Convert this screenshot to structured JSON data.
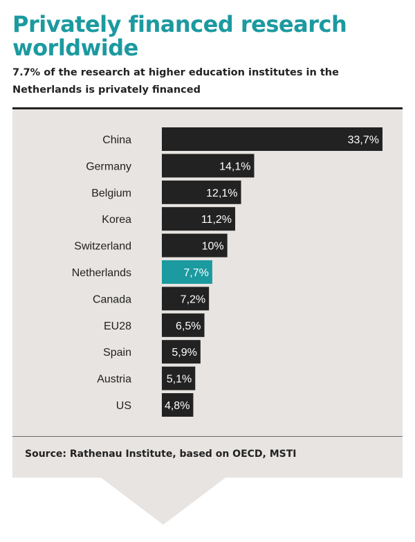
{
  "title": "Privately financed research worldwide",
  "subtitle": "7.7% of the research at higher education institutes in the Netherlands is privately financed",
  "source": "Source: Rathenau Institute, based on OECD, MSTI",
  "colors": {
    "accent": "#1b9aa0",
    "bar": "#222222",
    "panel": "#e7e4e1",
    "text": "#222222"
  },
  "chart_data": {
    "type": "bar",
    "orientation": "horizontal",
    "categories": [
      "China",
      "Germany",
      "Belgium",
      "Korea",
      "Switzerland",
      "Netherlands",
      "Canada",
      "EU28",
      "Spain",
      "Austria",
      "US"
    ],
    "values": [
      33.7,
      14.1,
      12.1,
      11.2,
      10,
      7.7,
      7.2,
      6.5,
      5.9,
      5.1,
      4.8
    ],
    "value_labels": [
      "33,7%",
      "14,1%",
      "12,1%",
      "11,2%",
      "10%",
      "7,7%",
      "7,2%",
      "6,5%",
      "5,9%",
      "5,1%",
      "4,8%"
    ],
    "highlight": "Netherlands",
    "highlight_color": "#1b9aa0",
    "bar_color": "#222222",
    "unit": "%",
    "xlim": [
      0,
      33.7
    ],
    "grid": false,
    "legend": "none"
  }
}
